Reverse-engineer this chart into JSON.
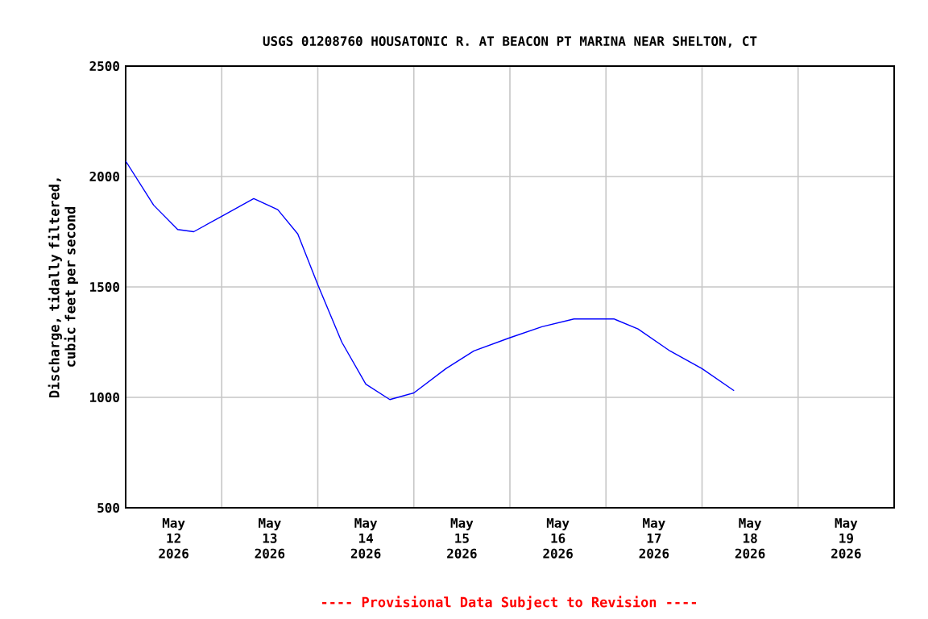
{
  "chart_data": {
    "type": "line",
    "title": "USGS 01208760 HOUSATONIC R. AT BEACON PT MARINA NEAR SHELTON, CT",
    "ylabel": "Discharge, tidally filtered, cubic feet per second",
    "annotations": [
      "---- Provisional Data Subject to Revision ----"
    ],
    "series": [
      {
        "color": "#0000ff",
        "x": [
          "2026-05-12T00:00",
          "2026-05-12T07:00",
          "2026-05-12T13:00",
          "2026-05-12T17:00",
          "2026-05-13T00:00",
          "2026-05-13T08:00",
          "2026-05-13T14:00",
          "2026-05-13T19:00",
          "2026-05-14T00:00",
          "2026-05-14T06:00",
          "2026-05-14T12:00",
          "2026-05-14T18:00",
          "2026-05-15T00:00",
          "2026-05-15T08:00",
          "2026-05-15T15:00",
          "2026-05-16T00:00",
          "2026-05-16T08:00",
          "2026-05-16T16:00",
          "2026-05-17T02:00",
          "2026-05-17T08:00",
          "2026-05-17T16:00",
          "2026-05-18T00:00",
          "2026-05-18T08:00"
        ],
        "values": [
          2070,
          1870,
          1760,
          1750,
          1820,
          1900,
          1850,
          1740,
          1510,
          1250,
          1060,
          990,
          1020,
          1130,
          1210,
          1270,
          1320,
          1355,
          1355,
          1310,
          1210,
          1130,
          1030
        ]
      }
    ],
    "xlim": [
      "2026-05-12T00:00",
      "2026-05-20T00:00"
    ],
    "xticks": [
      {
        "value": "2026-05-12T12:00",
        "label": "May 12 2026"
      },
      {
        "value": "2026-05-13T12:00",
        "label": "May 13 2026"
      },
      {
        "value": "2026-05-14T12:00",
        "label": "May 14 2026"
      },
      {
        "value": "2026-05-15T12:00",
        "label": "May 15 2026"
      },
      {
        "value": "2026-05-16T12:00",
        "label": "May 16 2026"
      },
      {
        "value": "2026-05-17T12:00",
        "label": "May 17 2026"
      },
      {
        "value": "2026-05-18T12:00",
        "label": "May 18 2026"
      },
      {
        "value": "2026-05-19T12:00",
        "label": "May 19 2026"
      },
      {
        "value": "2026-05-13T00:00",
        "label": null
      },
      {
        "value": "2026-05-14T00:00",
        "label": null
      },
      {
        "value": "2026-05-15T00:00",
        "label": null
      },
      {
        "value": "2026-05-16T00:00",
        "label": null
      },
      {
        "value": "2026-05-17T00:00",
        "label": null
      },
      {
        "value": "2026-05-18T00:00",
        "label": null
      },
      {
        "value": "2026-05-19T00:00",
        "label": null
      }
    ],
    "ylim": [
      500,
      2500
    ],
    "yticks": [
      500,
      1000,
      1500,
      2000,
      2500
    ],
    "grid": true,
    "marker": "none",
    "line_style": "solid"
  }
}
